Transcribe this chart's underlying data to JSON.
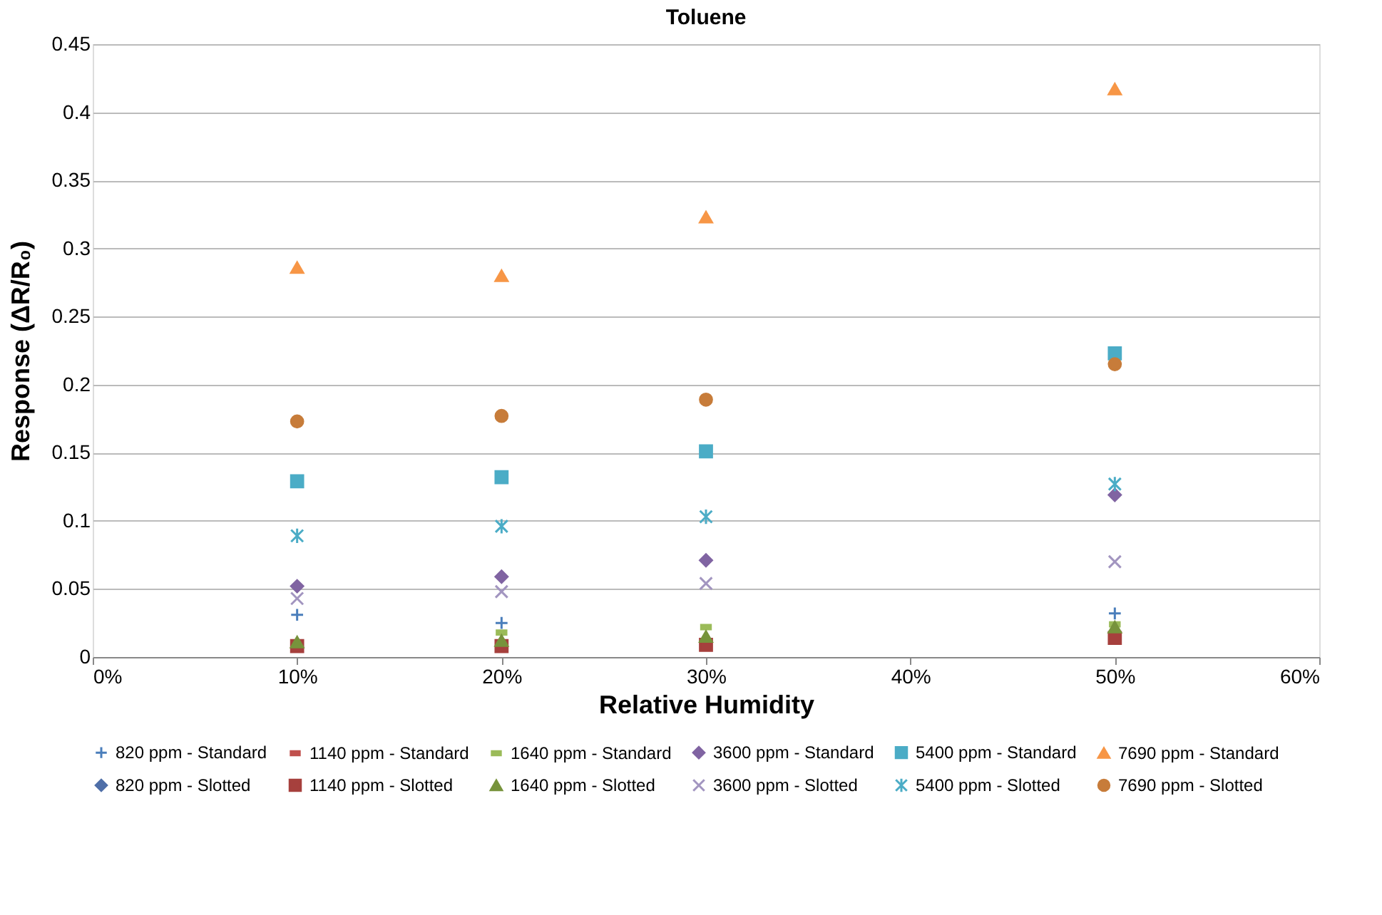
{
  "chart_data": {
    "type": "scatter",
    "title": "Toluene",
    "xlabel": "Relative Humidity",
    "ylabel": "Response (ΔR/R₀)",
    "x": [
      10,
      20,
      30,
      50
    ],
    "series": [
      {
        "name": "820 ppm - Standard",
        "color": "#4a7ebb",
        "marker": "cross",
        "values": [
          0.031,
          0.025,
          null,
          0.032
        ]
      },
      {
        "name": "1140 ppm - Standard",
        "color": "#c0504d",
        "marker": "square",
        "values": [
          null,
          null,
          null,
          null
        ]
      },
      {
        "name": "1640 ppm - Standard",
        "color": "#9bbb59",
        "marker": "square",
        "values": [
          null,
          0.018,
          0.022,
          0.024
        ]
      },
      {
        "name": "3600 ppm - Standard",
        "color": "#8064a2",
        "marker": "diamond",
        "values": [
          0.052,
          0.059,
          0.071,
          0.119
        ]
      },
      {
        "name": "5400 ppm - Standard",
        "color": "#4bacc6",
        "marker": "square",
        "values": [
          0.129,
          0.132,
          0.151,
          0.223
        ]
      },
      {
        "name": "7690 ppm - Standard",
        "color": "#f79646",
        "marker": "triangle",
        "values": [
          0.286,
          0.28,
          0.323,
          0.417
        ]
      },
      {
        "name": "820 ppm - Slotted",
        "color": "#4f6fa8",
        "marker": "diamond",
        "values": [
          null,
          null,
          null,
          null
        ]
      },
      {
        "name": "1140 ppm - Slotted",
        "color": "#a6403d",
        "marker": "square",
        "values": [
          0.008,
          0.008,
          0.009,
          0.014
        ]
      },
      {
        "name": "1640 ppm - Slotted",
        "color": "#77933c",
        "marker": "triangle",
        "values": [
          0.011,
          0.012,
          0.015,
          0.022
        ]
      },
      {
        "name": "3600 ppm - Slotted",
        "color": "#a295c0",
        "marker": "cross",
        "values": [
          0.043,
          0.048,
          0.054,
          0.07
        ]
      },
      {
        "name": "5400 ppm - Slotted",
        "color": "#4bacc6",
        "marker": "cross",
        "values": [
          0.089,
          0.096,
          0.103,
          0.127
        ]
      },
      {
        "name": "7690 ppm - Slotted",
        "color": "#c77c3a",
        "marker": "circle",
        "values": [
          0.173,
          0.177,
          0.189,
          0.215
        ]
      }
    ],
    "xlim": [
      0,
      60
    ],
    "xticks": [
      {
        "value": 0,
        "label": "0%"
      },
      {
        "value": 10,
        "label": "10%"
      },
      {
        "value": 20,
        "label": "20%"
      },
      {
        "value": 30,
        "label": "30%"
      },
      {
        "value": 40,
        "label": "40%"
      },
      {
        "value": 50,
        "label": "50%"
      },
      {
        "value": 60,
        "label": "60%"
      }
    ],
    "ylim": [
      0,
      0.45
    ],
    "yticks": [
      0,
      0.05,
      0.1,
      0.15,
      0.2,
      0.25,
      0.3,
      0.35,
      0.4,
      0.45
    ],
    "grid": "y",
    "legend": "bottom"
  }
}
